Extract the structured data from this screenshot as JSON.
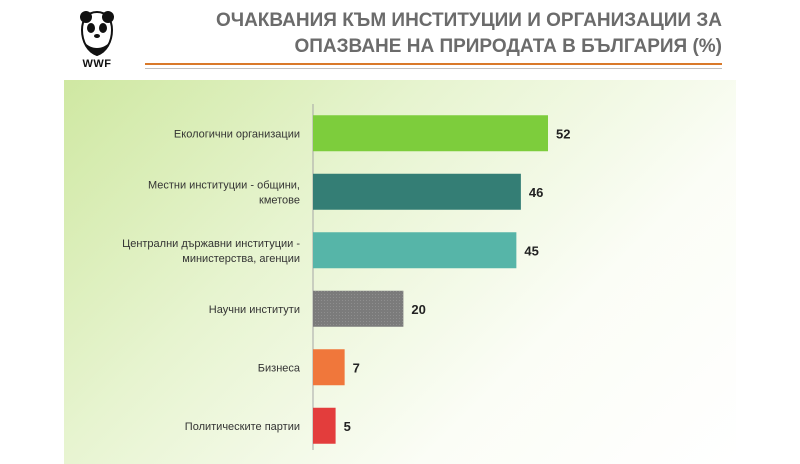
{
  "header": {
    "title_line1": "ОЧАКВАНИЯ КЪМ ИНСТИТУЦИИ И ОРГАНИЗАЦИИ ЗА",
    "title_line2": "ОПАЗВАНЕ НА ПРИРОДАТА В БЪЛГАРИЯ (%)",
    "logo_text": "WWF"
  },
  "chart_data": {
    "type": "bar",
    "orientation": "horizontal",
    "categories": [
      [
        "Екологични организации"
      ],
      [
        "Местни институции - общини,",
        "кметове"
      ],
      [
        "Централни държавни институции -",
        "министерства, агенции"
      ],
      [
        "Научни институти"
      ],
      [
        "Бизнеса"
      ],
      [
        "Политическите партии"
      ]
    ],
    "values": [
      52,
      46,
      45,
      20,
      7,
      5
    ],
    "data_labels": [
      "52",
      "46",
      "45",
      "20",
      "7",
      "5"
    ],
    "colors": [
      "#7dcd3c",
      "#347e75",
      "#56b5a8",
      "#7b7b7b",
      "#f0773b",
      "#e33d3c"
    ],
    "xlim": [
      0,
      52
    ],
    "grid": false,
    "legend": "none"
  }
}
